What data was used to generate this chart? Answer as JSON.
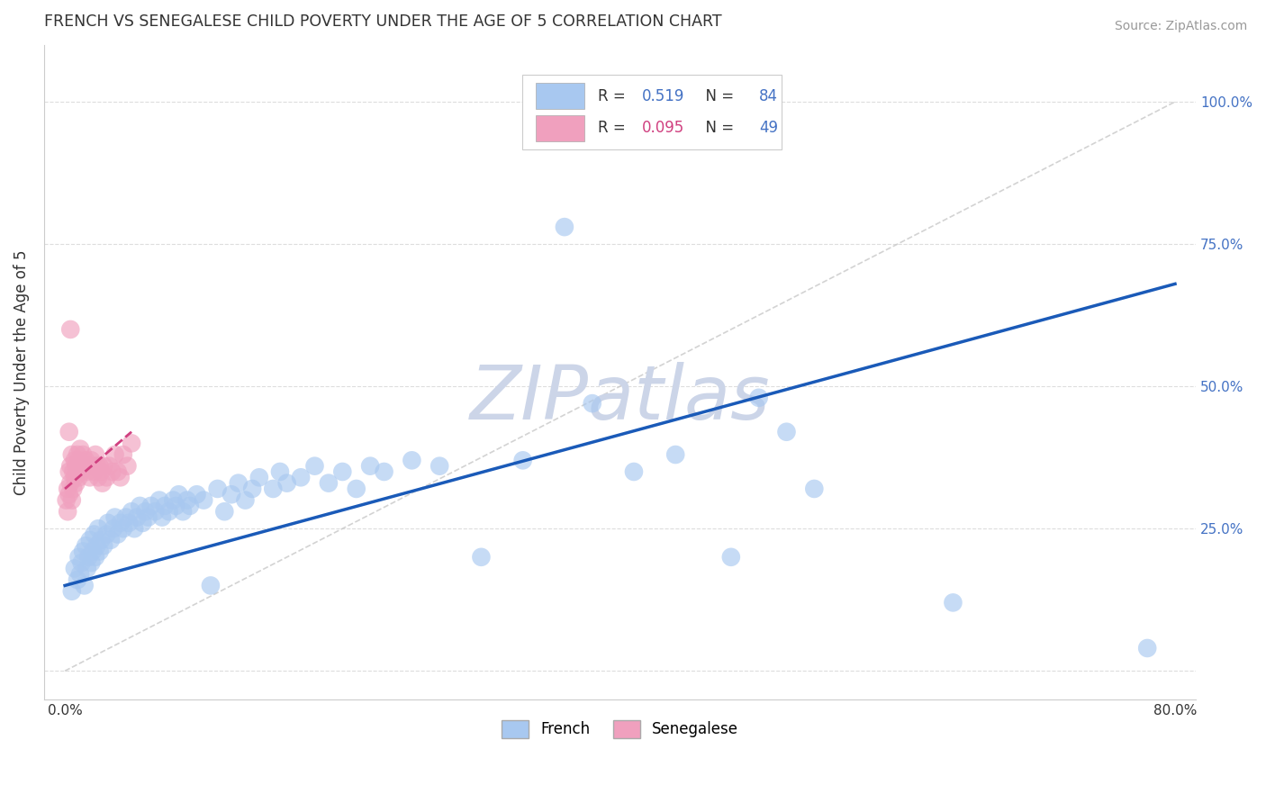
{
  "title": "FRENCH VS SENEGALESE CHILD POVERTY UNDER THE AGE OF 5 CORRELATION CHART",
  "source": "Source: ZipAtlas.com",
  "ylabel": "Child Poverty Under the Age of 5",
  "xlim": [
    -0.015,
    0.815
  ],
  "ylim": [
    -0.05,
    1.1
  ],
  "french_R": "0.519",
  "french_N": "84",
  "senegalese_R": "0.095",
  "senegalese_N": "49",
  "french_color": "#a8c8f0",
  "french_line_color": "#1a5ab8",
  "senegalese_color": "#f0a0be",
  "senegalese_line_color": "#d04080",
  "ref_line_color": "#c8c8c8",
  "watermark_color": "#ccd5e8",
  "background_color": "#ffffff",
  "grid_color": "#dddddd",
  "axis_label_color": "#4472c4",
  "text_color": "#333333",
  "french_x": [
    0.005,
    0.007,
    0.009,
    0.01,
    0.011,
    0.012,
    0.013,
    0.014,
    0.015,
    0.016,
    0.017,
    0.018,
    0.019,
    0.02,
    0.021,
    0.022,
    0.023,
    0.024,
    0.025,
    0.026,
    0.028,
    0.03,
    0.031,
    0.033,
    0.035,
    0.036,
    0.038,
    0.04,
    0.042,
    0.044,
    0.046,
    0.048,
    0.05,
    0.052,
    0.054,
    0.056,
    0.058,
    0.06,
    0.062,
    0.065,
    0.068,
    0.07,
    0.072,
    0.075,
    0.078,
    0.08,
    0.082,
    0.085,
    0.088,
    0.09,
    0.095,
    0.1,
    0.105,
    0.11,
    0.115,
    0.12,
    0.125,
    0.13,
    0.135,
    0.14,
    0.15,
    0.155,
    0.16,
    0.17,
    0.18,
    0.19,
    0.2,
    0.21,
    0.22,
    0.23,
    0.25,
    0.27,
    0.3,
    0.33,
    0.36,
    0.38,
    0.41,
    0.44,
    0.48,
    0.5,
    0.52,
    0.54,
    0.64,
    0.78
  ],
  "french_y": [
    0.14,
    0.18,
    0.16,
    0.2,
    0.17,
    0.19,
    0.21,
    0.15,
    0.22,
    0.18,
    0.2,
    0.23,
    0.19,
    0.21,
    0.24,
    0.2,
    0.22,
    0.25,
    0.21,
    0.23,
    0.22,
    0.24,
    0.26,
    0.23,
    0.25,
    0.27,
    0.24,
    0.26,
    0.25,
    0.27,
    0.26,
    0.28,
    0.25,
    0.27,
    0.29,
    0.26,
    0.28,
    0.27,
    0.29,
    0.28,
    0.3,
    0.27,
    0.29,
    0.28,
    0.3,
    0.29,
    0.31,
    0.28,
    0.3,
    0.29,
    0.31,
    0.3,
    0.15,
    0.32,
    0.28,
    0.31,
    0.33,
    0.3,
    0.32,
    0.34,
    0.32,
    0.35,
    0.33,
    0.34,
    0.36,
    0.33,
    0.35,
    0.32,
    0.36,
    0.35,
    0.37,
    0.36,
    0.2,
    0.37,
    0.78,
    0.47,
    0.35,
    0.38,
    0.2,
    0.48,
    0.42,
    0.32,
    0.12,
    0.04
  ],
  "senegalese_x": [
    0.001,
    0.002,
    0.002,
    0.003,
    0.003,
    0.004,
    0.004,
    0.005,
    0.005,
    0.006,
    0.006,
    0.007,
    0.007,
    0.008,
    0.008,
    0.009,
    0.009,
    0.01,
    0.01,
    0.011,
    0.011,
    0.012,
    0.013,
    0.014,
    0.015,
    0.016,
    0.017,
    0.018,
    0.019,
    0.02,
    0.021,
    0.022,
    0.023,
    0.024,
    0.025,
    0.026,
    0.027,
    0.028,
    0.03,
    0.032,
    0.034,
    0.036,
    0.038,
    0.04,
    0.042,
    0.045,
    0.048,
    0.003,
    0.004
  ],
  "senegalese_y": [
    0.3,
    0.32,
    0.28,
    0.35,
    0.31,
    0.33,
    0.36,
    0.3,
    0.38,
    0.32,
    0.35,
    0.34,
    0.37,
    0.33,
    0.36,
    0.35,
    0.38,
    0.34,
    0.37,
    0.36,
    0.39,
    0.35,
    0.38,
    0.36,
    0.37,
    0.35,
    0.36,
    0.34,
    0.37,
    0.36,
    0.35,
    0.38,
    0.36,
    0.34,
    0.36,
    0.35,
    0.33,
    0.36,
    0.34,
    0.36,
    0.35,
    0.38,
    0.35,
    0.34,
    0.38,
    0.36,
    0.4,
    0.42,
    0.6
  ],
  "blue_line_x0": 0.0,
  "blue_line_y0": 0.15,
  "blue_line_x1": 0.8,
  "blue_line_y1": 0.68,
  "pink_line_x0": 0.0,
  "pink_line_y0": 0.32,
  "pink_line_x1": 0.048,
  "pink_line_y1": 0.42
}
